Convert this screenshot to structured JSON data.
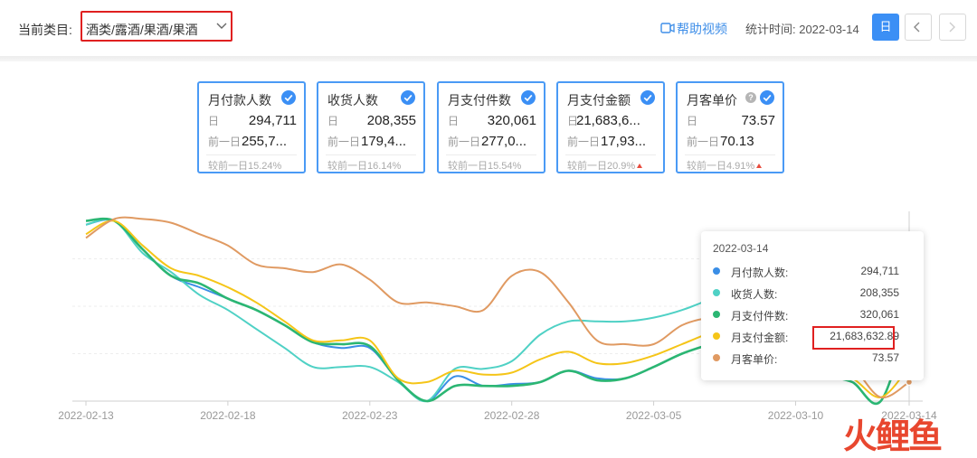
{
  "header": {
    "category_label": "当前类目:",
    "category_value": "酒类/露酒/果酒/果酒",
    "help_video": "帮助视频",
    "stat_time": "统计时间: 2022-03-14",
    "day_button": "日"
  },
  "cards": [
    {
      "title": "月付款人数",
      "day_label": "日",
      "day_value": "294,711",
      "prev_label": "前一日",
      "prev_value": "255,7...",
      "compare": "较前一日15.24%",
      "up": false,
      "help": false
    },
    {
      "title": "收货人数",
      "day_label": "日",
      "day_value": "208,355",
      "prev_label": "前一日",
      "prev_value": "179,4...",
      "compare": "较前一日16.14%",
      "up": false,
      "help": false
    },
    {
      "title": "月支付件数",
      "day_label": "日",
      "day_value": "320,061",
      "prev_label": "前一日",
      "prev_value": "277,0...",
      "compare": "较前一日15.54%",
      "up": false,
      "help": false
    },
    {
      "title": "月支付金额",
      "day_label": "日",
      "day_value": "21,683,6...",
      "prev_label": "前一日",
      "prev_value": "17,93...",
      "compare": "较前一日20.9%",
      "up": true,
      "help": false
    },
    {
      "title": "月客单价",
      "day_label": "日",
      "day_value": "73.57",
      "prev_label": "前一日",
      "prev_value": "70.13",
      "compare": "较前一日4.91%",
      "up": true,
      "help": true
    }
  ],
  "colors": {
    "accent": "#3b8ff5",
    "card_border": "#4a9af5",
    "highlight_red": "#e02020",
    "series": [
      "#3a8ee6",
      "#4fd1c5",
      "#2bb673",
      "#f5c518",
      "#e09a62"
    ]
  },
  "chart_data": {
    "type": "line",
    "x_ticks": [
      "2022-02-13",
      "2022-02-18",
      "2022-02-23",
      "2022-02-28",
      "2022-03-05",
      "2022-03-10",
      "2022-03-14"
    ],
    "x": [
      0,
      1,
      2,
      3,
      4,
      5,
      6,
      7,
      8,
      9,
      10,
      11,
      12,
      13,
      14,
      15,
      16,
      17,
      18,
      19,
      20,
      21,
      22,
      23,
      24,
      25,
      26,
      27,
      28,
      29
    ],
    "ylim": [
      0,
      100
    ],
    "grid": true,
    "series": [
      {
        "name": "月付款人数",
        "color": "#3a8ee6",
        "values": [
          93,
          95,
          80,
          66,
          60,
          54,
          48,
          40,
          31,
          28,
          28,
          11,
          0,
          13,
          8,
          9,
          10,
          16,
          12,
          12,
          18,
          25,
          30,
          34,
          32,
          24,
          14,
          10,
          0,
          44
        ]
      },
      {
        "name": "收货人数",
        "color": "#4fd1c5",
        "values": [
          93,
          95,
          78,
          68,
          56,
          48,
          38,
          28,
          18,
          18,
          18,
          10,
          0,
          17,
          17,
          21,
          35,
          42,
          42,
          42,
          44,
          48,
          54,
          62,
          68,
          56,
          40,
          26,
          24,
          52
        ]
      },
      {
        "name": "月支付件数",
        "color": "#2bb673",
        "values": [
          95,
          95,
          80,
          66,
          62,
          54,
          48,
          40,
          31,
          30,
          29,
          11,
          0,
          8,
          8,
          8,
          10,
          16,
          11,
          12,
          18,
          25,
          30,
          34,
          32,
          24,
          14,
          10,
          0,
          44
        ]
      },
      {
        "name": "月支付金额",
        "color": "#f5c518",
        "values": [
          88,
          95,
          82,
          70,
          66,
          60,
          52,
          42,
          32,
          32,
          32,
          12,
          10,
          16,
          14,
          15,
          22,
          26,
          20,
          20,
          24,
          30,
          36,
          40,
          36,
          28,
          16,
          12,
          2,
          18
        ]
      },
      {
        "name": "月客单价",
        "color": "#e09a62",
        "values": [
          86,
          96,
          96,
          94,
          88,
          82,
          72,
          70,
          68,
          72,
          64,
          52,
          52,
          50,
          48,
          66,
          68,
          52,
          32,
          30,
          30,
          40,
          44,
          44,
          40,
          36,
          24,
          18,
          2,
          10
        ]
      }
    ]
  },
  "tooltip": {
    "date": "2022-03-14",
    "items": [
      {
        "name": "月付款人数:",
        "value": "294,711",
        "color": "#3a8ee6"
      },
      {
        "name": "收货人数:",
        "value": "208,355",
        "color": "#4fd1c5"
      },
      {
        "name": "月支付件数:",
        "value": "320,061",
        "color": "#2bb673"
      },
      {
        "name": "月支付金额:",
        "value": "21,683,632.89",
        "color": "#f5c518"
      },
      {
        "name": "月客单价:",
        "value": "73.57",
        "color": "#e09a62"
      }
    ]
  },
  "watermark": {
    "main": "火鲤鱼"
  }
}
